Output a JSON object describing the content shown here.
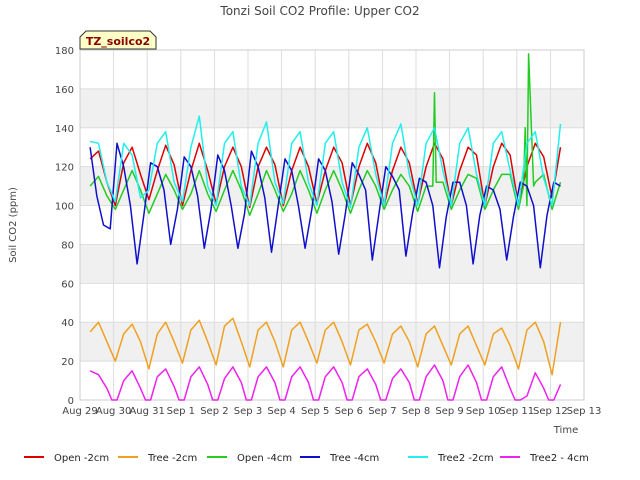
{
  "chart_data": {
    "type": "line",
    "title": "Tonzi Soil CO2 Profile: Upper CO2",
    "xlabel": "Time",
    "ylabel": "Soil CO2 (ppm)",
    "badge": "TZ_soilco2",
    "ylim": [
      0,
      180
    ],
    "yticks": [
      0,
      20,
      40,
      60,
      80,
      100,
      120,
      140,
      160,
      180
    ],
    "xlim": [
      0,
      15
    ],
    "xticks": [
      {
        "pos": 0,
        "label": "Aug 29"
      },
      {
        "pos": 1,
        "label": "Aug 30"
      },
      {
        "pos": 2,
        "label": "Aug 31"
      },
      {
        "pos": 3,
        "label": "Sep 1"
      },
      {
        "pos": 4,
        "label": "Sep 2"
      },
      {
        "pos": 5,
        "label": "Sep 3"
      },
      {
        "pos": 6,
        "label": "Sep 4"
      },
      {
        "pos": 7,
        "label": "Sep 5"
      },
      {
        "pos": 8,
        "label": "Sep 6"
      },
      {
        "pos": 9,
        "label": "Sep 7"
      },
      {
        "pos": 10,
        "label": "Sep 8"
      },
      {
        "pos": 11,
        "label": "Sep 9"
      },
      {
        "pos": 12,
        "label": "Sep 10"
      },
      {
        "pos": 13,
        "label": "Sep 11"
      },
      {
        "pos": 14,
        "label": "Sep 12"
      },
      {
        "pos": 15,
        "label": "Sep 13"
      }
    ],
    "grid": true,
    "legend_position": "bottom",
    "series": [
      {
        "name": "Open -2cm",
        "color": "#dd0000",
        "x": [
          0.3,
          0.55,
          0.8,
          1.05,
          1.3,
          1.55,
          1.8,
          2.05,
          2.3,
          2.55,
          2.8,
          3.05,
          3.3,
          3.55,
          3.8,
          4.05,
          4.3,
          4.55,
          4.8,
          5.05,
          5.3,
          5.55,
          5.8,
          6.05,
          6.3,
          6.55,
          6.8,
          7.05,
          7.3,
          7.55,
          7.8,
          8.05,
          8.3,
          8.55,
          8.8,
          9.05,
          9.3,
          9.55,
          9.8,
          10.05,
          10.3,
          10.55,
          10.8,
          11.05,
          11.3,
          11.55,
          11.8,
          12.05,
          12.3,
          12.55,
          12.8,
          13.05,
          13.3,
          13.55,
          13.8,
          14.05,
          14.3
        ],
        "y": [
          124,
          128,
          112,
          100,
          122,
          130,
          116,
          103,
          118,
          131,
          121,
          100,
          118,
          132,
          118,
          101,
          120,
          130,
          120,
          99,
          120,
          130,
          121,
          100,
          118,
          130,
          120,
          101,
          118,
          130,
          122,
          100,
          120,
          132,
          122,
          100,
          118,
          130,
          122,
          101,
          120,
          132,
          124,
          100,
          118,
          130,
          126,
          100,
          120,
          132,
          126,
          100,
          120,
          132,
          125,
          104,
          130
        ]
      },
      {
        "name": "Tree -2cm",
        "color": "#f0a020",
        "x": [
          0.3,
          0.55,
          0.8,
          1.05,
          1.3,
          1.55,
          1.8,
          2.05,
          2.3,
          2.55,
          2.8,
          3.05,
          3.3,
          3.55,
          3.8,
          4.05,
          4.3,
          4.55,
          4.8,
          5.05,
          5.3,
          5.55,
          5.8,
          6.05,
          6.3,
          6.55,
          6.8,
          7.05,
          7.3,
          7.55,
          7.8,
          8.05,
          8.3,
          8.55,
          8.8,
          9.05,
          9.3,
          9.55,
          9.8,
          10.05,
          10.3,
          10.55,
          10.8,
          11.05,
          11.3,
          11.55,
          11.8,
          12.05,
          12.3,
          12.55,
          12.8,
          13.05,
          13.3,
          13.55,
          13.8,
          14.05,
          14.3
        ],
        "y": [
          35,
          40,
          30,
          20,
          34,
          39,
          30,
          16,
          34,
          40,
          30,
          19,
          36,
          41,
          30,
          18,
          38,
          42,
          30,
          17,
          36,
          40,
          30,
          17,
          36,
          40,
          30,
          19,
          36,
          40,
          30,
          18,
          36,
          39,
          30,
          19,
          34,
          38,
          30,
          17,
          34,
          38,
          28,
          18,
          34,
          38,
          28,
          18,
          34,
          37,
          28,
          16,
          36,
          40,
          30,
          13,
          40
        ]
      },
      {
        "name": "Open -4cm",
        "color": "#22cc22",
        "x": [
          0.3,
          0.55,
          0.8,
          1.05,
          1.3,
          1.55,
          1.8,
          2.05,
          2.3,
          2.55,
          2.8,
          3.05,
          3.3,
          3.55,
          3.8,
          4.05,
          4.3,
          4.55,
          4.8,
          5.05,
          5.3,
          5.55,
          5.8,
          6.05,
          6.3,
          6.55,
          6.8,
          7.05,
          7.3,
          7.55,
          7.8,
          8.05,
          8.3,
          8.55,
          8.8,
          9.05,
          9.3,
          9.55,
          9.8,
          10.05,
          10.3,
          10.5,
          10.55,
          10.6,
          10.8,
          11.05,
          11.3,
          11.55,
          11.8,
          12.05,
          12.3,
          12.55,
          12.8,
          13.05,
          13.2,
          13.25,
          13.3,
          13.35,
          13.5,
          13.55,
          13.8,
          14.05,
          14.3
        ],
        "y": [
          110,
          115,
          105,
          98,
          108,
          118,
          108,
          96,
          106,
          116,
          108,
          98,
          106,
          118,
          106,
          97,
          108,
          118,
          108,
          95,
          106,
          118,
          108,
          97,
          106,
          118,
          108,
          96,
          108,
          118,
          108,
          96,
          108,
          118,
          110,
          98,
          108,
          116,
          110,
          97,
          110,
          110,
          158,
          112,
          112,
          98,
          108,
          116,
          114,
          98,
          108,
          116,
          116,
          98,
          110,
          140,
          100,
          178,
          110,
          112,
          116,
          98,
          112
        ]
      },
      {
        "name": "Tree -4cm",
        "color": "#1010cc",
        "x": [
          0.3,
          0.5,
          0.7,
          0.9,
          1.1,
          1.3,
          1.5,
          1.7,
          1.9,
          2.1,
          2.3,
          2.5,
          2.7,
          2.9,
          3.1,
          3.3,
          3.5,
          3.7,
          3.9,
          4.1,
          4.3,
          4.5,
          4.7,
          4.9,
          5.1,
          5.3,
          5.5,
          5.7,
          5.9,
          6.1,
          6.3,
          6.5,
          6.7,
          6.9,
          7.1,
          7.3,
          7.5,
          7.7,
          7.9,
          8.1,
          8.3,
          8.5,
          8.7,
          8.9,
          9.1,
          9.3,
          9.5,
          9.7,
          9.9,
          10.1,
          10.3,
          10.5,
          10.7,
          10.9,
          11.1,
          11.3,
          11.5,
          11.7,
          11.9,
          12.1,
          12.3,
          12.5,
          12.7,
          12.9,
          13.1,
          13.3,
          13.5,
          13.7,
          13.9,
          14.1,
          14.3
        ],
        "y": [
          130,
          105,
          90,
          88,
          132,
          120,
          100,
          70,
          95,
          122,
          120,
          108,
          80,
          98,
          125,
          120,
          105,
          78,
          98,
          126,
          118,
          100,
          78,
          96,
          128,
          120,
          104,
          76,
          100,
          124,
          118,
          100,
          78,
          98,
          124,
          118,
          102,
          75,
          96,
          122,
          116,
          108,
          72,
          96,
          120,
          115,
          108,
          74,
          96,
          114,
          112,
          100,
          68,
          94,
          112,
          112,
          100,
          70,
          95,
          110,
          108,
          98,
          72,
          94,
          112,
          110,
          100,
          68,
          95,
          112,
          110
        ]
      },
      {
        "name": "Tree2 -2cm",
        "color": "#22eeee",
        "x": [
          0.3,
          0.55,
          0.8,
          1.05,
          1.3,
          1.55,
          1.8,
          2.05,
          2.3,
          2.55,
          2.8,
          3.05,
          3.3,
          3.55,
          3.8,
          4.05,
          4.3,
          4.55,
          4.8,
          5.05,
          5.3,
          5.55,
          5.8,
          6.05,
          6.3,
          6.55,
          6.8,
          7.05,
          7.3,
          7.55,
          7.8,
          8.05,
          8.3,
          8.55,
          8.8,
          9.05,
          9.3,
          9.55,
          9.8,
          10.05,
          10.3,
          10.55,
          10.8,
          11.05,
          11.3,
          11.55,
          11.8,
          12.05,
          12.3,
          12.55,
          12.8,
          13.05,
          13.3,
          13.55,
          13.8,
          14.05,
          14.3
        ],
        "y": [
          133,
          132,
          112,
          102,
          132,
          126,
          104,
          108,
          132,
          138,
          112,
          102,
          130,
          146,
          110,
          100,
          132,
          138,
          110,
          100,
          132,
          143,
          112,
          101,
          132,
          138,
          112,
          100,
          132,
          138,
          112,
          99,
          130,
          140,
          116,
          100,
          132,
          142,
          116,
          100,
          132,
          140,
          118,
          100,
          132,
          140,
          116,
          100,
          132,
          138,
          118,
          100,
          132,
          138,
          114,
          100,
          142
        ]
      },
      {
        "name": "Tree2 - 4cm",
        "color": "#ee22ee",
        "x": [
          0.3,
          0.55,
          0.8,
          0.95,
          1.1,
          1.3,
          1.55,
          1.8,
          1.95,
          2.1,
          2.3,
          2.55,
          2.8,
          2.95,
          3.1,
          3.3,
          3.55,
          3.8,
          3.95,
          4.1,
          4.3,
          4.55,
          4.8,
          4.95,
          5.1,
          5.3,
          5.55,
          5.8,
          5.95,
          6.1,
          6.3,
          6.55,
          6.8,
          6.95,
          7.1,
          7.3,
          7.55,
          7.8,
          7.95,
          8.1,
          8.3,
          8.55,
          8.8,
          8.95,
          9.1,
          9.3,
          9.55,
          9.8,
          9.95,
          10.1,
          10.3,
          10.55,
          10.8,
          10.95,
          11.1,
          11.3,
          11.55,
          11.8,
          11.95,
          12.1,
          12.3,
          12.55,
          12.8,
          12.95,
          13.1,
          13.3,
          13.55,
          13.8,
          13.95,
          14.1,
          14.3
        ],
        "y": [
          15,
          13,
          6,
          0,
          0,
          10,
          15,
          6,
          0,
          0,
          12,
          16,
          7,
          0,
          0,
          12,
          17,
          8,
          0,
          0,
          11,
          17,
          9,
          0,
          0,
          12,
          17,
          9,
          0,
          0,
          12,
          17,
          9,
          0,
          0,
          12,
          17,
          9,
          0,
          0,
          12,
          16,
          8,
          0,
          0,
          11,
          16,
          9,
          0,
          0,
          12,
          18,
          10,
          0,
          0,
          12,
          18,
          9,
          0,
          0,
          12,
          17,
          6,
          0,
          0,
          2,
          14,
          6,
          0,
          0,
          8
        ]
      }
    ]
  }
}
